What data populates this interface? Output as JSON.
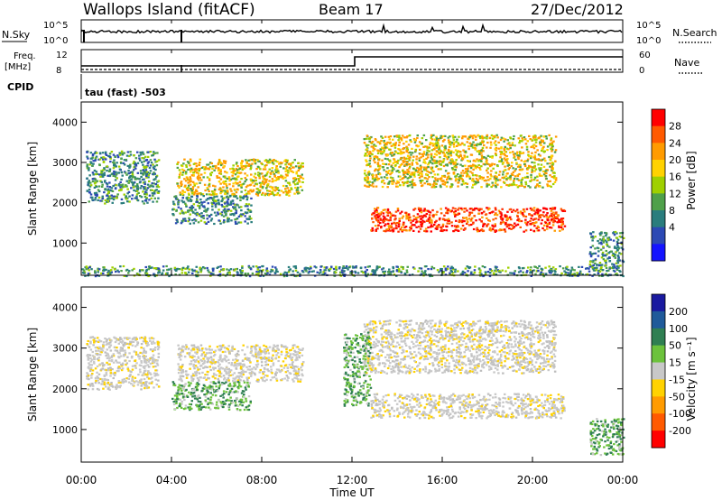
{
  "header": {
    "station": "Wallops Island (fitACF)",
    "beam": "Beam 17",
    "date": "27/Dec/2012"
  },
  "top_panels": {
    "nsky_label": "N.Sky",
    "nsearch_label": "N.Search",
    "noise_ticks": [
      "10^5",
      "10^0"
    ],
    "noise_ticks_right": [
      "10^5",
      "10^0"
    ],
    "freq_label_line1": "Freq.",
    "freq_label_line2": "[MHz]",
    "freq_ticks": [
      "12",
      "8"
    ],
    "nave_label": "Nave",
    "nave_ticks": [
      "60",
      "0"
    ],
    "cpid_label": "CPID",
    "cpid_text": "tau (fast) -503"
  },
  "chart_data": [
    {
      "type": "heatmap",
      "name": "power",
      "ylabel": "Slant Range [km]",
      "ylim": [
        200,
        4500
      ],
      "yticks": [
        1000,
        2000,
        3000,
        4000
      ],
      "xlim": [
        0,
        24
      ],
      "colorbar_label": "Power [dB]",
      "colorbar_ticks": [
        "28",
        "24",
        "20",
        "16",
        "12",
        "8",
        "4"
      ],
      "colorbar_colors": [
        "#ff0000",
        "#ff5a00",
        "#ff9b00",
        "#ffd200",
        "#9fd000",
        "#4fa04a",
        "#2a7d7d",
        "#2c49b4",
        "#1414ff"
      ],
      "regions": [
        {
          "t0": 0.2,
          "t1": 3.4,
          "r0": 2000,
          "r1": 3300,
          "level": "low"
        },
        {
          "t0": 4.2,
          "t1": 9.8,
          "r0": 2200,
          "r1": 3100,
          "level": "mid"
        },
        {
          "t0": 4.0,
          "t1": 7.5,
          "r0": 1500,
          "r1": 2200,
          "level": "low"
        },
        {
          "t0": 12.8,
          "t1": 21.4,
          "r0": 1300,
          "r1": 1900,
          "level": "high"
        },
        {
          "t0": 12.5,
          "t1": 21.0,
          "r0": 2400,
          "r1": 3700,
          "level": "mid"
        },
        {
          "t0": 0.0,
          "t1": 24.0,
          "r0": 200,
          "r1": 450,
          "level": "low"
        },
        {
          "t0": 22.5,
          "t1": 24.0,
          "r0": 400,
          "r1": 1300,
          "level": "low"
        }
      ]
    },
    {
      "type": "heatmap",
      "name": "velocity",
      "ylabel": "Slant Range [km]",
      "ylim": [
        200,
        4500
      ],
      "yticks": [
        1000,
        2000,
        3000,
        4000
      ],
      "xlim": [
        0,
        24
      ],
      "xticks": [
        "00:00",
        "04:00",
        "08:00",
        "12:00",
        "16:00",
        "20:00",
        "00:00"
      ],
      "xlabel": "Time UT",
      "colorbar_label": "Velocity [m s⁻¹]",
      "colorbar_ticks": [
        "200",
        "100",
        "50",
        "15",
        "-15",
        "-50",
        "-100",
        "-200"
      ],
      "colorbar_colors": [
        "#1a1aa0",
        "#1f5a9a",
        "#2f7f52",
        "#6cc23c",
        "#c8c8c8",
        "#ffd200",
        "#ff9b00",
        "#ff5a00",
        "#ff0000"
      ],
      "regions": [
        {
          "t0": 0.2,
          "t1": 3.4,
          "r0": 2000,
          "r1": 3300,
          "level": "grey"
        },
        {
          "t0": 4.2,
          "t1": 9.8,
          "r0": 2200,
          "r1": 3100,
          "level": "grey"
        },
        {
          "t0": 4.0,
          "t1": 7.5,
          "r0": 1500,
          "r1": 2200,
          "level": "green"
        },
        {
          "t0": 12.8,
          "t1": 21.4,
          "r0": 1300,
          "r1": 1900,
          "level": "grey"
        },
        {
          "t0": 12.5,
          "t1": 21.0,
          "r0": 2400,
          "r1": 3700,
          "level": "grey"
        },
        {
          "t0": 11.6,
          "t1": 12.8,
          "r0": 1600,
          "r1": 3400,
          "level": "green"
        },
        {
          "t0": 22.5,
          "t1": 24.0,
          "r0": 400,
          "r1": 1300,
          "level": "green"
        }
      ]
    }
  ]
}
